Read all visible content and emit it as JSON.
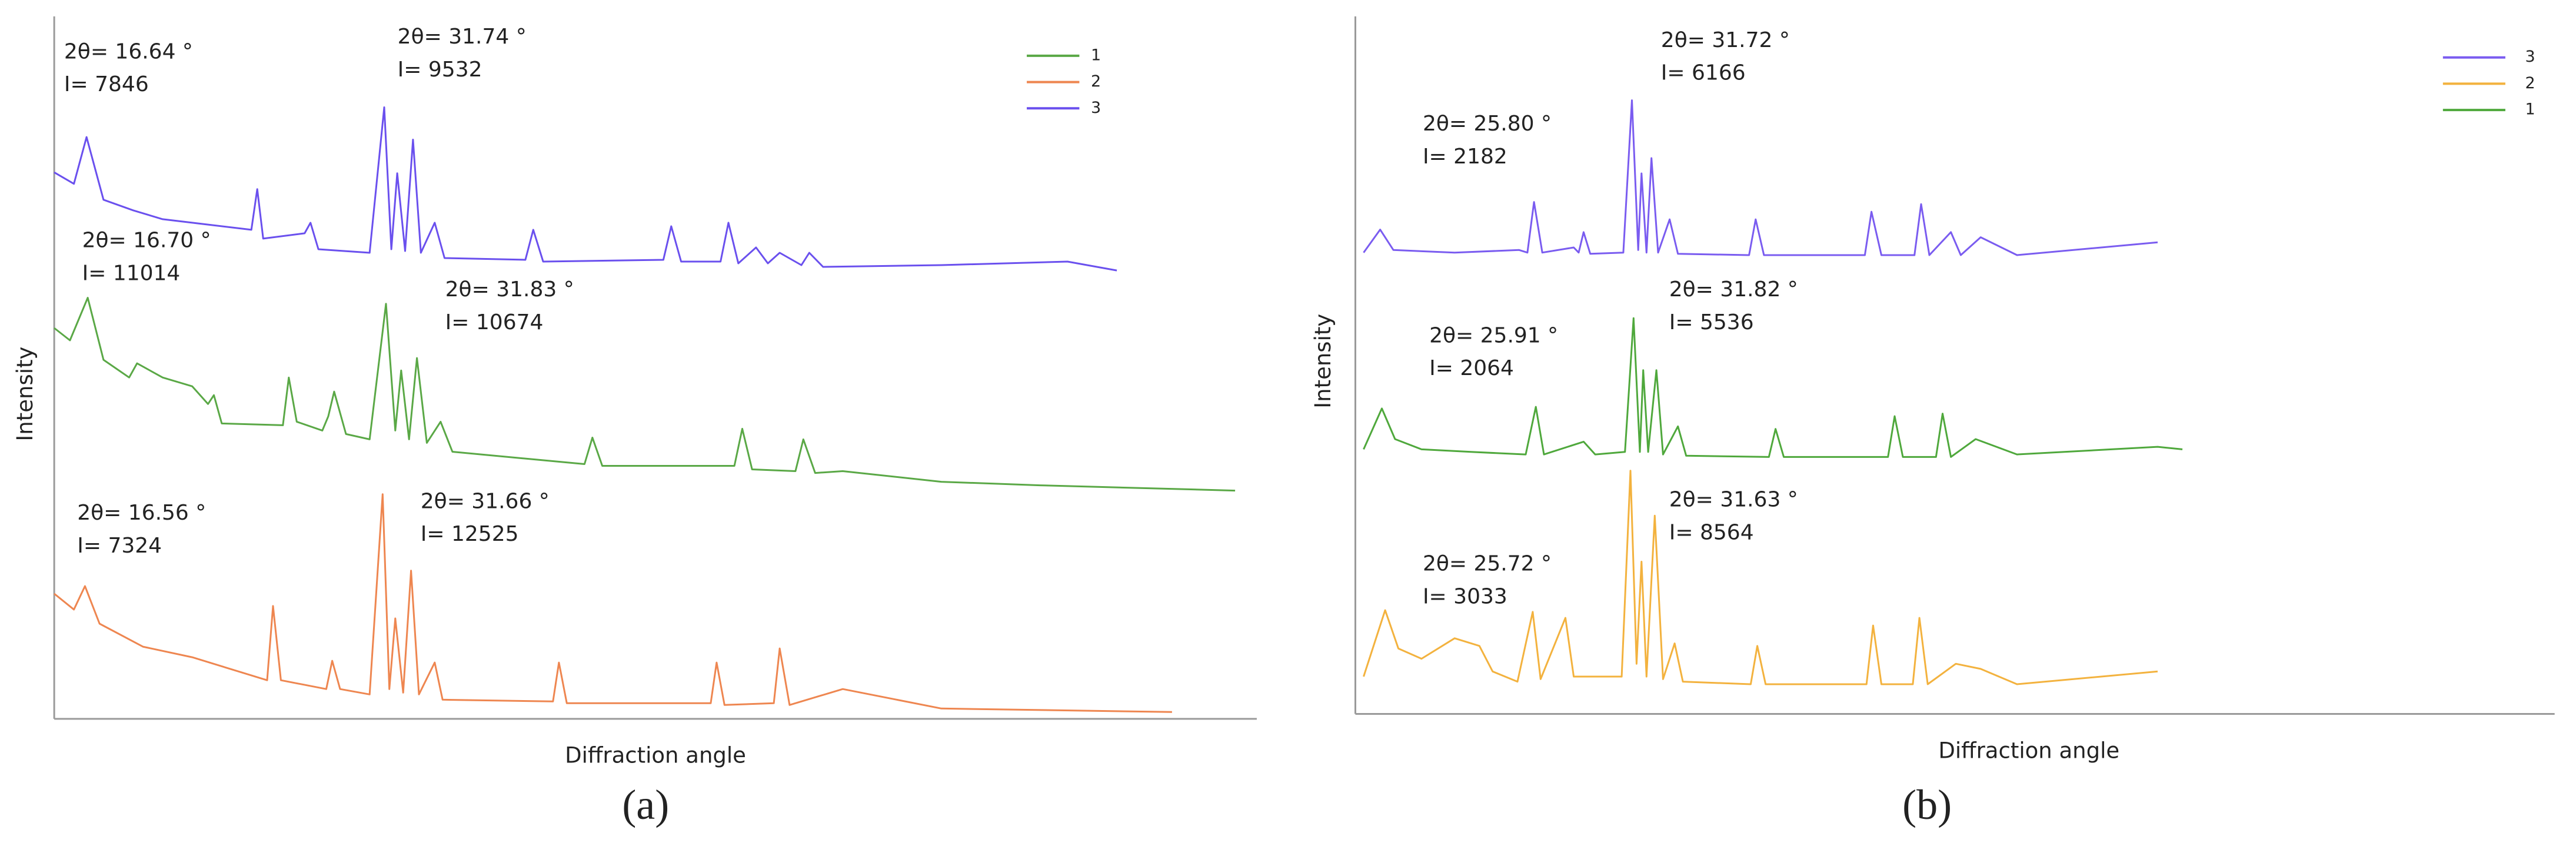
{
  "chart_data": [
    {
      "type": "line",
      "panel_label": "(a)",
      "x_label": "Diffraction angle",
      "y_label": "Intensity",
      "legend": "upper right",
      "xlim": [
        15,
        76
      ],
      "ylim": [
        0,
        13000
      ],
      "series": [
        {
          "name": "1",
          "color": "#5aa846",
          "x": [
            15,
            15.8,
            16.7,
            17.5,
            18.8,
            19.2,
            20.5,
            22,
            22.8,
            23.1,
            23.5,
            26.6,
            26.9,
            27.3,
            28.6,
            28.9,
            29.2,
            29.8,
            31,
            31.83,
            32.3,
            32.6,
            33,
            33.4,
            33.9,
            34.6,
            35.2,
            41.9,
            42.3,
            42.8,
            49.5,
            49.9,
            50.4,
            52.6,
            53,
            53.6,
            55,
            60,
            65,
            74.9
          ],
          "values": [
            9300,
            8600,
            11014,
            7500,
            6500,
            7300,
            6500,
            6000,
            5000,
            5500,
            3900,
            3800,
            6500,
            4000,
            3500,
            4300,
            5700,
            3300,
            3000,
            10674,
            3500,
            6900,
            3000,
            7600,
            2800,
            4000,
            2300,
            1600,
            3100,
            1500,
            1500,
            3600,
            1300,
            1200,
            3000,
            1100,
            1200,
            600,
            400,
            100
          ]
        },
        {
          "name": "2",
          "color": "#ee8650",
          "x": [
            15,
            16,
            16.56,
            17.3,
            19.5,
            22,
            25.8,
            26.1,
            26.5,
            28.8,
            29.1,
            29.5,
            31,
            31.66,
            32,
            32.3,
            32.7,
            33.1,
            33.5,
            34.3,
            34.7,
            40.3,
            40.6,
            41,
            48.3,
            48.6,
            49,
            51.5,
            51.8,
            52.3,
            55,
            60,
            71.7
          ],
          "values": [
            6900,
            6000,
            7324,
            5200,
            3900,
            3300,
            2000,
            6200,
            2000,
            1500,
            3100,
            1500,
            1200,
            12525,
            1500,
            5500,
            1300,
            8200,
            1200,
            3000,
            900,
            800,
            3000,
            700,
            700,
            3000,
            600,
            700,
            3800,
            600,
            1500,
            400,
            200
          ]
        },
        {
          "name": "3",
          "color": "#6a50ee",
          "x": [
            15,
            16,
            16.64,
            17.5,
            19,
            20.5,
            22,
            25,
            25.3,
            25.6,
            27.7,
            28,
            28.4,
            31,
            31.74,
            32.1,
            32.4,
            32.8,
            33.2,
            33.6,
            34.3,
            34.8,
            38.9,
            39.3,
            39.8,
            45.9,
            46.3,
            46.8,
            48.8,
            49.2,
            49.7,
            50.6,
            51.2,
            51.8,
            52.9,
            53.3,
            54,
            60,
            66.4,
            68.9
          ],
          "values": [
            5850,
            5200,
            7846,
            4300,
            3700,
            3200,
            3000,
            2600,
            4900,
            2100,
            2400,
            3000,
            1500,
            1300,
            9532,
            1500,
            5800,
            1400,
            7700,
            1300,
            3000,
            1000,
            900,
            2600,
            800,
            900,
            2800,
            800,
            800,
            3000,
            700,
            1600,
            700,
            1300,
            600,
            1300,
            500,
            600,
            800,
            300
          ]
        }
      ],
      "annotations": [
        {
          "lines": [
            "2θ= 16.64 °",
            "I= 7846"
          ]
        },
        {
          "lines": [
            "2θ= 31.74 °",
            "I= 9532"
          ]
        },
        {
          "lines": [
            "2θ= 16.70 °",
            "I= 11014"
          ]
        },
        {
          "lines": [
            "2θ= 31.83 °",
            "I= 10674"
          ]
        },
        {
          "lines": [
            "2θ= 16.56 °",
            "I= 7324"
          ]
        },
        {
          "lines": [
            "2θ= 31.66 °",
            "I= 12525"
          ]
        }
      ]
    },
    {
      "type": "line",
      "panel_label": "(b)",
      "x_label": "Diffraction angle",
      "y_label": "Intensity",
      "legend": "upper right",
      "xlim": [
        15,
        87.5
      ],
      "ylim": [
        0,
        9000
      ],
      "series": [
        {
          "name": "3",
          "color": "#7a5cf0",
          "x": [
            15.5,
            16.5,
            17.3,
            21,
            24.9,
            25.4,
            25.8,
            26.3,
            28.2,
            28.5,
            28.8,
            29.2,
            31.2,
            31.72,
            32.1,
            32.3,
            32.6,
            32.9,
            33.3,
            34,
            34.5,
            38.8,
            39.2,
            39.7,
            45.8,
            46.2,
            46.8,
            48.8,
            49.2,
            49.7,
            51,
            51.6,
            52.8,
            55,
            63.5
          ],
          "values": [
            200,
            1100,
            300,
            200,
            300,
            200,
            2182,
            200,
            400,
            200,
            1000,
            150,
            200,
            6166,
            300,
            3300,
            200,
            3900,
            200,
            1500,
            150,
            100,
            1500,
            100,
            100,
            1800,
            100,
            100,
            2100,
            100,
            1000,
            100,
            800,
            100,
            600
          ]
        },
        {
          "name": "2",
          "color": "#f3b23e",
          "x": [
            15.5,
            16.8,
            17.6,
            19,
            21,
            22.5,
            23.3,
            24.8,
            25.72,
            26.2,
            27.7,
            28.2,
            31.1,
            31.63,
            32,
            32.3,
            32.6,
            33.1,
            33.6,
            34.3,
            34.8,
            38.9,
            39.3,
            39.8,
            45.9,
            46.3,
            46.8,
            48.7,
            49.1,
            49.6,
            51.3,
            52.8,
            55,
            63.5
          ],
          "values": [
            500,
            3100,
            1600,
            1200,
            2000,
            1700,
            700,
            300,
            3033,
            400,
            2800,
            500,
            500,
            8564,
            1000,
            5000,
            500,
            6800,
            400,
            1800,
            300,
            200,
            1700,
            200,
            200,
            2500,
            200,
            200,
            2800,
            200,
            1000,
            800,
            200,
            700
          ]
        },
        {
          "name": "1",
          "color": "#4fa83c",
          "x": [
            15.5,
            16.6,
            17.4,
            19,
            22,
            25.3,
            25.91,
            26.4,
            28.8,
            29.5,
            31.3,
            31.82,
            32.2,
            32.4,
            32.7,
            33.2,
            33.6,
            34.5,
            35,
            40,
            40.4,
            40.9,
            47.2,
            47.6,
            48.1,
            50.1,
            50.5,
            51,
            52.5,
            55,
            63.5,
            65
          ],
          "values": [
            400,
            2000,
            800,
            400,
            300,
            200,
            2064,
            200,
            700,
            200,
            300,
            5536,
            300,
            3500,
            300,
            3500,
            200,
            1300,
            150,
            100,
            1200,
            100,
            100,
            1700,
            100,
            100,
            1800,
            100,
            800,
            200,
            500,
            400
          ]
        }
      ],
      "annotations": [
        {
          "lines": [
            "2θ= 31.72 °",
            "I= 6166"
          ]
        },
        {
          "lines": [
            "2θ= 25.80 °",
            "I= 2182"
          ]
        },
        {
          "lines": [
            "2θ= 31.82 °",
            "I= 5536"
          ]
        },
        {
          "lines": [
            "2θ= 25.91 °",
            "I= 2064"
          ]
        },
        {
          "lines": [
            "2θ= 31.63 °",
            "I= 8564"
          ]
        },
        {
          "lines": [
            "2θ= 25.72 °",
            "I= 3033"
          ]
        }
      ]
    }
  ]
}
